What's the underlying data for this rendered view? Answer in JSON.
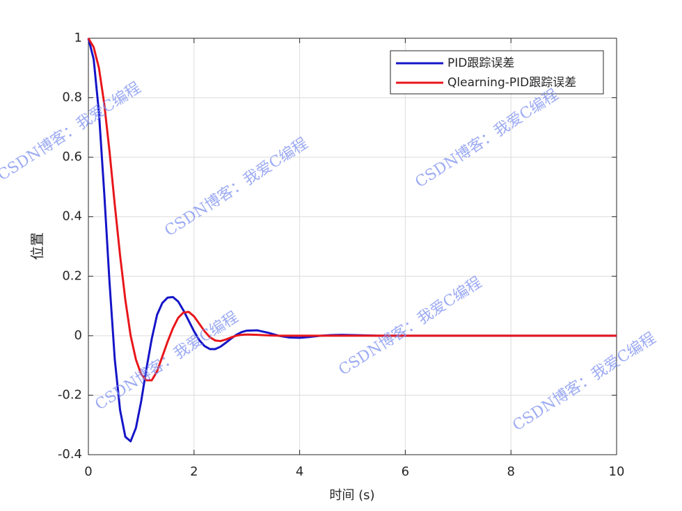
{
  "chart_data": {
    "type": "line",
    "x": [
      0,
      0.1,
      0.2,
      0.3,
      0.4,
      0.5,
      0.6,
      0.7,
      0.8,
      0.9,
      1.0,
      1.1,
      1.2,
      1.3,
      1.4,
      1.5,
      1.6,
      1.7,
      1.8,
      1.9,
      2.0,
      2.1,
      2.2,
      2.3,
      2.4,
      2.5,
      2.6,
      2.7,
      2.8,
      2.9,
      3.0,
      3.2,
      3.4,
      3.6,
      3.8,
      4.0,
      4.2,
      4.4,
      4.6,
      4.8,
      5.0,
      5.5,
      6,
      8,
      10
    ],
    "series": [
      {
        "name": "PID跟踪误差",
        "color": "#1414c8",
        "values": [
          1,
          0.93,
          0.75,
          0.48,
          0.18,
          -0.08,
          -0.25,
          -0.34,
          -0.355,
          -0.31,
          -0.22,
          -0.11,
          -0.01,
          0.07,
          0.11,
          0.128,
          0.13,
          0.115,
          0.085,
          0.05,
          0.015,
          -0.015,
          -0.035,
          -0.045,
          -0.045,
          -0.037,
          -0.024,
          -0.01,
          0.003,
          0.012,
          0.017,
          0.018,
          0.01,
          0,
          -0.006,
          -0.007,
          -0.004,
          0,
          0.002,
          0.003,
          0.002,
          0,
          0,
          0,
          0
        ]
      },
      {
        "name": "Qlearning-PID跟踪误差",
        "color": "#e8161a",
        "values": [
          1,
          0.97,
          0.9,
          0.78,
          0.62,
          0.44,
          0.27,
          0.12,
          0.0,
          -0.08,
          -0.13,
          -0.15,
          -0.15,
          -0.12,
          -0.07,
          -0.02,
          0.025,
          0.06,
          0.078,
          0.08,
          0.065,
          0.04,
          0.015,
          -0.005,
          -0.016,
          -0.018,
          -0.013,
          -0.006,
          0,
          0.003,
          0.004,
          0.003,
          0.001,
          0,
          0,
          0,
          0,
          0,
          0,
          0,
          0,
          0,
          0,
          0,
          0
        ]
      }
    ],
    "xlabel": "时间 (s)",
    "ylabel": "位置",
    "xlim": [
      0,
      10
    ],
    "ylim": [
      -0.4,
      1
    ],
    "xticks": [
      0,
      2,
      4,
      6,
      8,
      10
    ],
    "yticks": [
      -0.4,
      -0.2,
      0,
      0.2,
      0.4,
      0.6,
      0.8,
      1
    ],
    "grid": true,
    "legend": "top-right",
    "watermark": "CSDN博客：我爱C编程"
  }
}
